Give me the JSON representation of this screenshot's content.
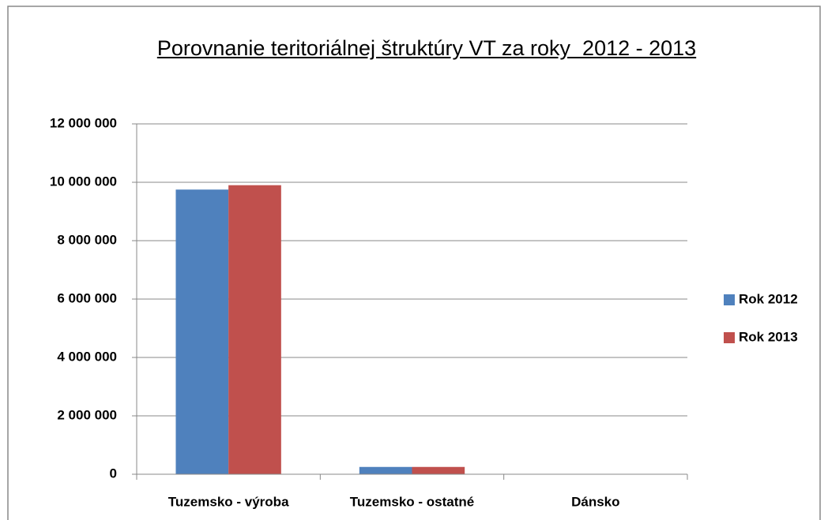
{
  "chart_data": {
    "type": "bar",
    "title": "Porovnanie teritoriálnej štruktúry VT za roky  2012 - 2013",
    "categories": [
      "Tuzemsko - výroba",
      "Tuzemsko - ostatné",
      "Dánsko"
    ],
    "series": [
      {
        "name": "Rok 2012",
        "color": "#4f81bd",
        "values": [
          9750000,
          250000,
          10000
        ]
      },
      {
        "name": "Rok 2013",
        "color": "#c0504d",
        "values": [
          9900000,
          250000,
          10000
        ]
      }
    ],
    "ylim": [
      0,
      12000000
    ],
    "yticks": [
      0,
      {
        "value": 2000000,
        "label": "2 000 000"
      },
      {
        "value": 4000000,
        "label": "4 000 000"
      },
      {
        "value": 6000000,
        "label": "6 000 000"
      },
      {
        "value": 8000000,
        "label": "8 000 000"
      },
      {
        "value": 10000000,
        "label": "10 000 000"
      },
      {
        "value": 12000000,
        "label": "12 000 000"
      }
    ],
    "grid": true,
    "legend": "right"
  }
}
